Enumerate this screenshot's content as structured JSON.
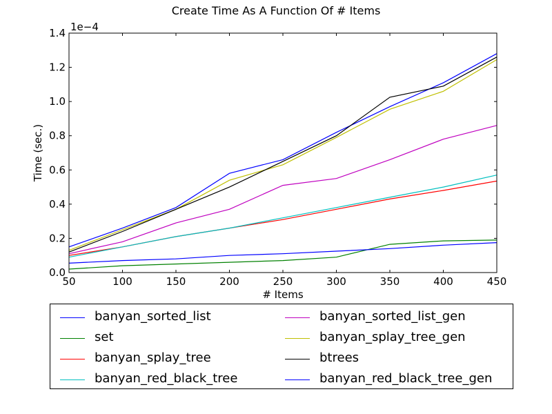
{
  "chart_data": {
    "type": "line",
    "title": "Create Time As A Function Of # Items",
    "xlabel": "# Items",
    "ylabel": "Time (sec.)",
    "y_offset_label": "1e−4",
    "y_scale_factor": 0.0001,
    "xlim": [
      50,
      450
    ],
    "ylim": [
      0,
      1.4
    ],
    "x_ticks": [
      "50",
      "100",
      "150",
      "200",
      "250",
      "300",
      "350",
      "400",
      "450"
    ],
    "y_ticks": [
      "0.0",
      "0.2",
      "0.4",
      "0.6",
      "0.8",
      "1.0",
      "1.2",
      "1.4"
    ],
    "grid": false,
    "legend_position": "below",
    "x": [
      50,
      100,
      150,
      200,
      250,
      300,
      350,
      400,
      450
    ],
    "series": [
      {
        "name": "banyan_sorted_list",
        "color": "#0000ff",
        "values": [
          0.15,
          0.26,
          0.38,
          0.58,
          0.66,
          0.82,
          0.97,
          1.11,
          1.28
        ]
      },
      {
        "name": "set",
        "color": "#008000",
        "values": [
          0.02,
          0.04,
          0.05,
          0.06,
          0.07,
          0.09,
          0.165,
          0.185,
          0.19
        ]
      },
      {
        "name": "banyan_splay_tree",
        "color": "#ff0000",
        "values": [
          0.1,
          0.15,
          0.21,
          0.26,
          0.31,
          0.37,
          0.43,
          0.48,
          0.535
        ]
      },
      {
        "name": "banyan_red_black_tree",
        "color": "#00bfbf",
        "values": [
          0.09,
          0.15,
          0.21,
          0.26,
          0.32,
          0.38,
          0.44,
          0.5,
          0.57
        ]
      },
      {
        "name": "banyan_sorted_list_gen",
        "color": "#bf00bf",
        "values": [
          0.11,
          0.18,
          0.29,
          0.37,
          0.51,
          0.55,
          0.66,
          0.78,
          0.86
        ]
      },
      {
        "name": "banyan_splay_tree_gen",
        "color": "#bfbf00",
        "values": [
          0.13,
          0.25,
          0.37,
          0.54,
          0.63,
          0.79,
          0.955,
          1.06,
          1.245
        ]
      },
      {
        "name": "btrees",
        "color": "#000000",
        "values": [
          0.12,
          0.24,
          0.37,
          0.5,
          0.65,
          0.8,
          1.025,
          1.09,
          1.26
        ]
      },
      {
        "name": "banyan_red_black_tree_gen",
        "color": "#0000ff",
        "values": [
          0.055,
          0.07,
          0.08,
          0.1,
          0.11,
          0.125,
          0.14,
          0.16,
          0.175
        ]
      }
    ]
  }
}
